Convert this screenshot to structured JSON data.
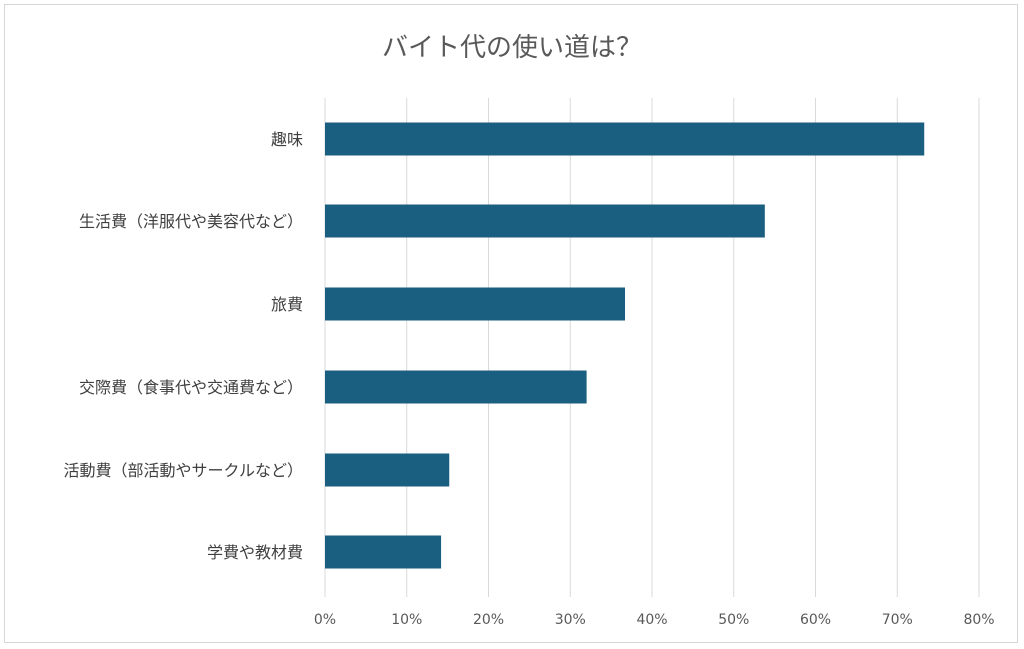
{
  "chart_data": {
    "type": "bar",
    "orientation": "horizontal",
    "title": "バイト代の使い道は？",
    "categories": [
      "趣味",
      "生活費（洋服代や美容代など）",
      "旅費",
      "交際費（食事代や交通費など）",
      "活動費（部活動やサークルなど）",
      "学費や教材費"
    ],
    "values": [
      73.3,
      53.8,
      36.7,
      32.0,
      15.2,
      14.2
    ],
    "xlim": [
      0,
      80
    ],
    "xticks": [
      "0%",
      "10%",
      "20%",
      "30%",
      "40%",
      "50%",
      "60%",
      "70%",
      "80%"
    ],
    "tick_values": [
      0,
      10,
      20,
      30,
      40,
      50,
      60,
      70,
      80
    ],
    "bar_color": "#1a5e80",
    "grid": true,
    "legend": "none"
  }
}
